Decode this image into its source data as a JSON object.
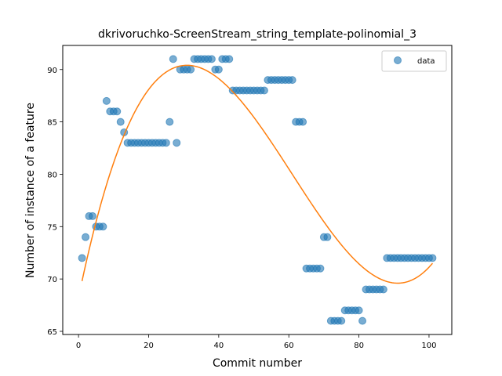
{
  "chart_data": {
    "type": "scatter",
    "title": "dkrivoruchko-ScreenStream_string_template-polinomial_3",
    "xlabel": "Commit number",
    "ylabel": "Number of instance of a feature",
    "xlim": [
      -4.5,
      106.5
    ],
    "ylim": [
      64.7,
      92.3
    ],
    "xticks": [
      0,
      20,
      40,
      60,
      80,
      100
    ],
    "yticks": [
      65,
      70,
      75,
      80,
      85,
      90
    ],
    "grid": false,
    "legend_position": "top-right",
    "series": [
      {
        "name": "data",
        "kind": "scatter",
        "color": "#1f77b4",
        "x": [
          1,
          2,
          3,
          4,
          5,
          6,
          7,
          8,
          9,
          10,
          11,
          12,
          13,
          14,
          15,
          16,
          17,
          18,
          19,
          20,
          21,
          22,
          23,
          24,
          25,
          26,
          27,
          28,
          29,
          30,
          31,
          32,
          33,
          34,
          35,
          36,
          37,
          38,
          39,
          40,
          41,
          42,
          43,
          44,
          45,
          46,
          47,
          48,
          49,
          50,
          51,
          52,
          53,
          54,
          55,
          56,
          57,
          58,
          59,
          60,
          61,
          62,
          63,
          64,
          65,
          66,
          67,
          68,
          69,
          70,
          71,
          72,
          73,
          74,
          75,
          76,
          77,
          78,
          79,
          80,
          81,
          82,
          83,
          84,
          85,
          86,
          87,
          88,
          89,
          90,
          91,
          92,
          93,
          94,
          95,
          96,
          97,
          98,
          99,
          100,
          101
        ],
        "y": [
          72,
          74,
          76,
          76,
          75,
          75,
          75,
          87,
          86,
          86,
          86,
          85,
          84,
          83,
          83,
          83,
          83,
          83,
          83,
          83,
          83,
          83,
          83,
          83,
          83,
          85,
          91,
          83,
          90,
          90,
          90,
          90,
          91,
          91,
          91,
          91,
          91,
          91,
          90,
          90,
          91,
          91,
          91,
          88,
          88,
          88,
          88,
          88,
          88,
          88,
          88,
          88,
          88,
          89,
          89,
          89,
          89,
          89,
          89,
          89,
          89,
          85,
          85,
          85,
          71,
          71,
          71,
          71,
          71,
          74,
          74,
          66,
          66,
          66,
          66,
          67,
          67,
          67,
          67,
          67,
          66,
          69,
          69,
          69,
          69,
          69,
          69,
          72,
          72,
          72,
          72,
          72,
          72,
          72,
          72,
          72,
          72,
          72,
          72,
          72,
          72
        ]
      },
      {
        "name": "",
        "kind": "line",
        "color": "#ff7f0e",
        "fit": "polynomial",
        "degree": 3,
        "anchors": [
          [
            1,
            69.8
          ],
          [
            30.5,
            90.4
          ],
          [
            91,
            69.6
          ],
          [
            101,
            71.5
          ]
        ]
      }
    ]
  }
}
